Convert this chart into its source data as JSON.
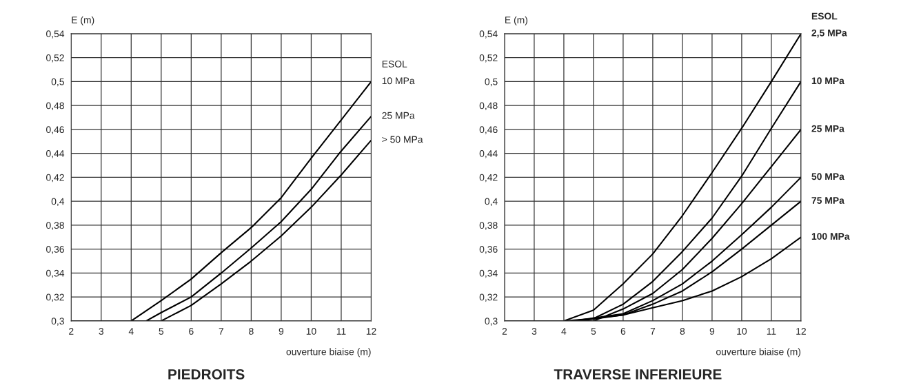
{
  "chart_data": [
    {
      "type": "line",
      "title": "PIEDROITS",
      "xlabel": "ouverture biaise (m)",
      "ylabel": "E (m)",
      "legend_title": "ESOL",
      "xlim": [
        2,
        12
      ],
      "xticks": [
        2,
        3,
        4,
        5,
        6,
        7,
        8,
        9,
        10,
        11,
        12
      ],
      "ylim": [
        0.3,
        0.54
      ],
      "yticks": [
        {
          "value": 0.3,
          "label": "0,3"
        },
        {
          "value": 0.32,
          "label": "0,32"
        },
        {
          "value": 0.34,
          "label": "0,34"
        },
        {
          "value": 0.36,
          "label": "0,36"
        },
        {
          "value": 0.38,
          "label": "0,38"
        },
        {
          "value": 0.4,
          "label": "0,4"
        },
        {
          "value": 0.42,
          "label": "0,42"
        },
        {
          "value": 0.44,
          "label": "0,44"
        },
        {
          "value": 0.46,
          "label": "0,46"
        },
        {
          "value": 0.48,
          "label": "0,48"
        },
        {
          "value": 0.5,
          "label": "0,5"
        },
        {
          "value": 0.52,
          "label": "0,52"
        },
        {
          "value": 0.54,
          "label": "0,54"
        }
      ],
      "grid": true,
      "legend": "right",
      "marker": "none",
      "line_style": "solid",
      "series": [
        {
          "name": "10 MPa",
          "color": "#000000",
          "x": [
            2,
            4,
            5,
            6,
            7,
            8,
            9,
            10,
            11,
            12
          ],
          "values": [
            0.3,
            0.3,
            0.317,
            0.335,
            0.357,
            0.378,
            0.403,
            0.436,
            0.468,
            0.5
          ]
        },
        {
          "name": "25 MPa",
          "color": "#000000",
          "x": [
            2,
            4.5,
            5,
            6,
            7,
            8,
            9,
            10,
            11,
            12
          ],
          "values": [
            0.3,
            0.3,
            0.307,
            0.32,
            0.34,
            0.361,
            0.383,
            0.41,
            0.442,
            0.471
          ]
        },
        {
          "name": "> 50 MPa",
          "color": "#000000",
          "x": [
            2,
            5,
            6,
            7,
            8,
            9,
            10,
            11,
            12
          ],
          "values": [
            0.3,
            0.3,
            0.313,
            0.331,
            0.35,
            0.371,
            0.395,
            0.422,
            0.451
          ]
        }
      ]
    },
    {
      "type": "line",
      "title": "TRAVERSE INFERIEURE",
      "xlabel": "ouverture biaise (m)",
      "ylabel": "E (m)",
      "legend_title": "ESOL",
      "xlim": [
        2,
        12
      ],
      "xticks": [
        2,
        3,
        4,
        5,
        6,
        7,
        8,
        9,
        10,
        11,
        12
      ],
      "ylim": [
        0.3,
        0.54
      ],
      "yticks": [
        {
          "value": 0.3,
          "label": "0,3"
        },
        {
          "value": 0.32,
          "label": "0,32"
        },
        {
          "value": 0.34,
          "label": "0,34"
        },
        {
          "value": 0.36,
          "label": "0,36"
        },
        {
          "value": 0.38,
          "label": "0,38"
        },
        {
          "value": 0.4,
          "label": "0,4"
        },
        {
          "value": 0.42,
          "label": "0,42"
        },
        {
          "value": 0.44,
          "label": "0,44"
        },
        {
          "value": 0.46,
          "label": "0,46"
        },
        {
          "value": 0.48,
          "label": "0,48"
        },
        {
          "value": 0.5,
          "label": "0,5"
        },
        {
          "value": 0.52,
          "label": "0,52"
        },
        {
          "value": 0.54,
          "label": "0,54"
        }
      ],
      "grid": true,
      "legend": "right",
      "marker": "none",
      "line_style": "solid",
      "series": [
        {
          "name": "2,5 MPa",
          "color": "#000000",
          "x": [
            2,
            4,
            5,
            6,
            7,
            8,
            9,
            10,
            11,
            12
          ],
          "values": [
            0.3,
            0.3,
            0.309,
            0.331,
            0.356,
            0.388,
            0.424,
            0.461,
            0.5,
            0.54
          ]
        },
        {
          "name": "10 MPa",
          "color": "#000000",
          "x": [
            2,
            4,
            5,
            6,
            7,
            8,
            9,
            10,
            11,
            12
          ],
          "values": [
            0.3,
            0.3,
            0.302,
            0.314,
            0.333,
            0.358,
            0.386,
            0.421,
            0.461,
            0.5
          ]
        },
        {
          "name": "25 MPa",
          "color": "#000000",
          "x": [
            2,
            4,
            5,
            6,
            7,
            8,
            9,
            10,
            11,
            12
          ],
          "values": [
            0.3,
            0.3,
            0.3,
            0.31,
            0.323,
            0.343,
            0.369,
            0.398,
            0.429,
            0.46
          ]
        },
        {
          "name": "50 MPa",
          "color": "#000000",
          "x": [
            2,
            4.3,
            6,
            7,
            8,
            9,
            10,
            11,
            12
          ],
          "values": [
            0.3,
            0.3,
            0.306,
            0.317,
            0.331,
            0.35,
            0.372,
            0.395,
            0.42
          ]
        },
        {
          "name": "75 MPa",
          "color": "#000000",
          "x": [
            2,
            4.3,
            6,
            7,
            8,
            9,
            10,
            11,
            12
          ],
          "values": [
            0.3,
            0.3,
            0.305,
            0.314,
            0.325,
            0.341,
            0.36,
            0.38,
            0.4
          ]
        },
        {
          "name": "100 MPa",
          "color": "#000000",
          "x": [
            2,
            4.5,
            6,
            7,
            8,
            9,
            10,
            11,
            12
          ],
          "values": [
            0.3,
            0.3,
            0.305,
            0.311,
            0.317,
            0.325,
            0.337,
            0.352,
            0.37
          ]
        }
      ]
    }
  ]
}
